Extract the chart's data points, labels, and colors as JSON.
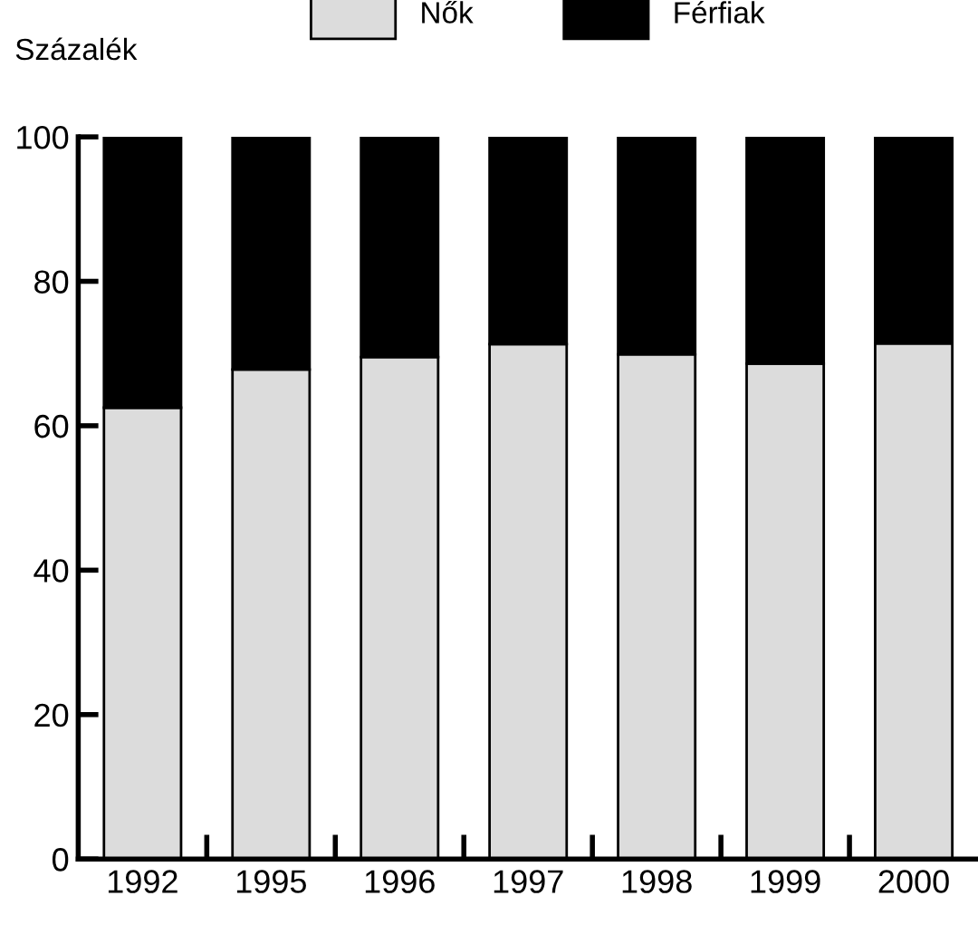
{
  "chart_data": {
    "type": "bar",
    "stacked": true,
    "ylabel": "Százalék",
    "categories": [
      "1992",
      "1995",
      "1996",
      "1997",
      "1998",
      "1999",
      "2000"
    ],
    "series": [
      {
        "name": "Nők",
        "color": "#dcdcdc",
        "values": [
          62.5,
          67.8,
          69.5,
          71.3,
          69.9,
          68.6,
          71.4
        ]
      },
      {
        "name": "Férfiak",
        "color": "#000000",
        "values": [
          37.5,
          32.2,
          30.5,
          28.7,
          30.1,
          31.4,
          28.6
        ]
      }
    ],
    "ylim": [
      0,
      100
    ],
    "yticks": [
      0,
      20,
      40,
      60,
      80,
      100
    ],
    "grid": false,
    "legend": "top"
  }
}
